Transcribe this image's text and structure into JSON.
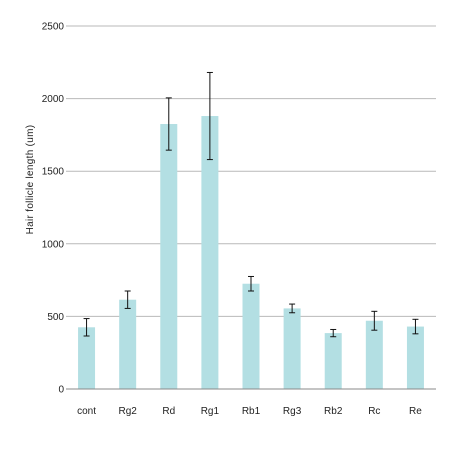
{
  "chart_data": {
    "type": "bar",
    "title": "",
    "xlabel": "",
    "ylabel": "Hair follicle length (um)",
    "ylim": [
      0,
      2500
    ],
    "yticks": [
      0,
      500,
      1000,
      1500,
      2000,
      2500
    ],
    "grid": true,
    "legend": "none",
    "categories": [
      "cont",
      "Rg2",
      "Rd",
      "Rg1",
      "Rb1",
      "Rg3",
      "Rb2",
      "Rc",
      "Re"
    ],
    "values": [
      425,
      615,
      1825,
      1880,
      725,
      555,
      385,
      470,
      430
    ],
    "error": [
      60,
      60,
      180,
      300,
      50,
      30,
      25,
      65,
      50
    ],
    "bar_color": "#b3dfe3",
    "grid_color": "#b9b9b9"
  }
}
